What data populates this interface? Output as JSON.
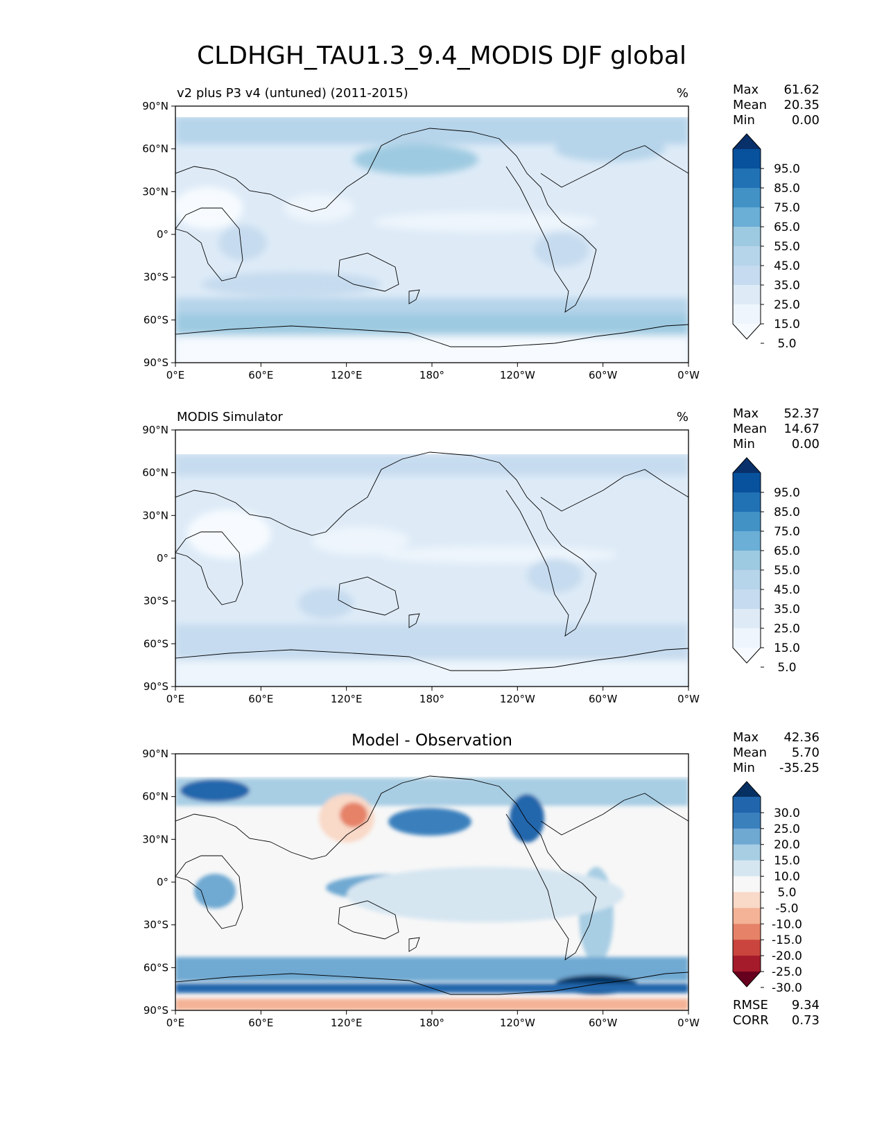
{
  "title": "CLDHGH_TAU1.3_9.4_MODIS DJF global",
  "chart_data": [
    {
      "type": "heatmap",
      "kind": "map",
      "title": "v2 plus P3 v4 (untuned) (2011-2015)",
      "units": "%",
      "stats": [
        {
          "label": "Max",
          "value": "61.62"
        },
        {
          "label": "Mean",
          "value": "20.35"
        },
        {
          "label": "Min",
          "value": "0.00"
        }
      ],
      "colorbar": {
        "levels": [
          "95.0",
          "85.0",
          "75.0",
          "65.0",
          "55.0",
          "45.0",
          "35.0",
          "25.0",
          "15.0",
          "5.0"
        ],
        "colors_top_to_bottom": [
          "#08306b",
          "#08519c",
          "#2171b5",
          "#4292c6",
          "#6baed6",
          "#9ecae1",
          "#b6d4ea",
          "#c6dbef",
          "#deebf7",
          "#eef5fc",
          "#f7fbff"
        ]
      },
      "xticks": [
        "0°E",
        "60°E",
        "120°E",
        "180°",
        "120°W",
        "60°W",
        "0°W"
      ],
      "yticks": [
        "90°N",
        "60°N",
        "30°N",
        "0°",
        "30°S",
        "60°S",
        "90°S"
      ]
    },
    {
      "type": "heatmap",
      "kind": "map",
      "title": "MODIS Simulator",
      "units": "%",
      "stats": [
        {
          "label": "Max",
          "value": "52.37"
        },
        {
          "label": "Mean",
          "value": "14.67"
        },
        {
          "label": "Min",
          "value": "0.00"
        }
      ],
      "colorbar": {
        "levels": [
          "95.0",
          "85.0",
          "75.0",
          "65.0",
          "55.0",
          "45.0",
          "35.0",
          "25.0",
          "15.0",
          "5.0"
        ],
        "colors_top_to_bottom": [
          "#08306b",
          "#08519c",
          "#2171b5",
          "#4292c6",
          "#6baed6",
          "#9ecae1",
          "#b6d4ea",
          "#c6dbef",
          "#deebf7",
          "#eef5fc",
          "#f7fbff"
        ]
      },
      "xticks": [
        "0°E",
        "60°E",
        "120°E",
        "180°",
        "120°W",
        "60°W",
        "0°W"
      ],
      "yticks": [
        "90°N",
        "60°N",
        "30°N",
        "0°",
        "30°S",
        "60°S",
        "90°S"
      ]
    },
    {
      "type": "heatmap",
      "kind": "map",
      "title": "Model - Observation",
      "units": "",
      "stats": [
        {
          "label": "Max",
          "value": "42.36"
        },
        {
          "label": "Mean",
          "value": "5.70"
        },
        {
          "label": "Min",
          "value": "-35.25"
        }
      ],
      "extra_stats": [
        {
          "label": "RMSE",
          "value": "9.34"
        },
        {
          "label": "CORR",
          "value": "0.73"
        }
      ],
      "colorbar": {
        "levels": [
          "30.0",
          "25.0",
          "20.0",
          "15.0",
          "10.0",
          "5.0",
          "-5.0",
          "-10.0",
          "-15.0",
          "-20.0",
          "-25.0",
          "-30.0"
        ],
        "colors_top_to_bottom": [
          "#053061",
          "#2166ac",
          "#3a80bd",
          "#6fa9d2",
          "#a8cee4",
          "#d6e6f1",
          "#f7f7f7",
          "#f9d9c8",
          "#f4b396",
          "#e58268",
          "#c9453d",
          "#a51b2b",
          "#67001f"
        ]
      },
      "xticks": [
        "0°E",
        "60°E",
        "120°E",
        "180°",
        "120°W",
        "60°W",
        "0°W"
      ],
      "yticks": [
        "90°N",
        "60°N",
        "30°N",
        "0°",
        "30°S",
        "60°S",
        "90°S"
      ]
    }
  ]
}
